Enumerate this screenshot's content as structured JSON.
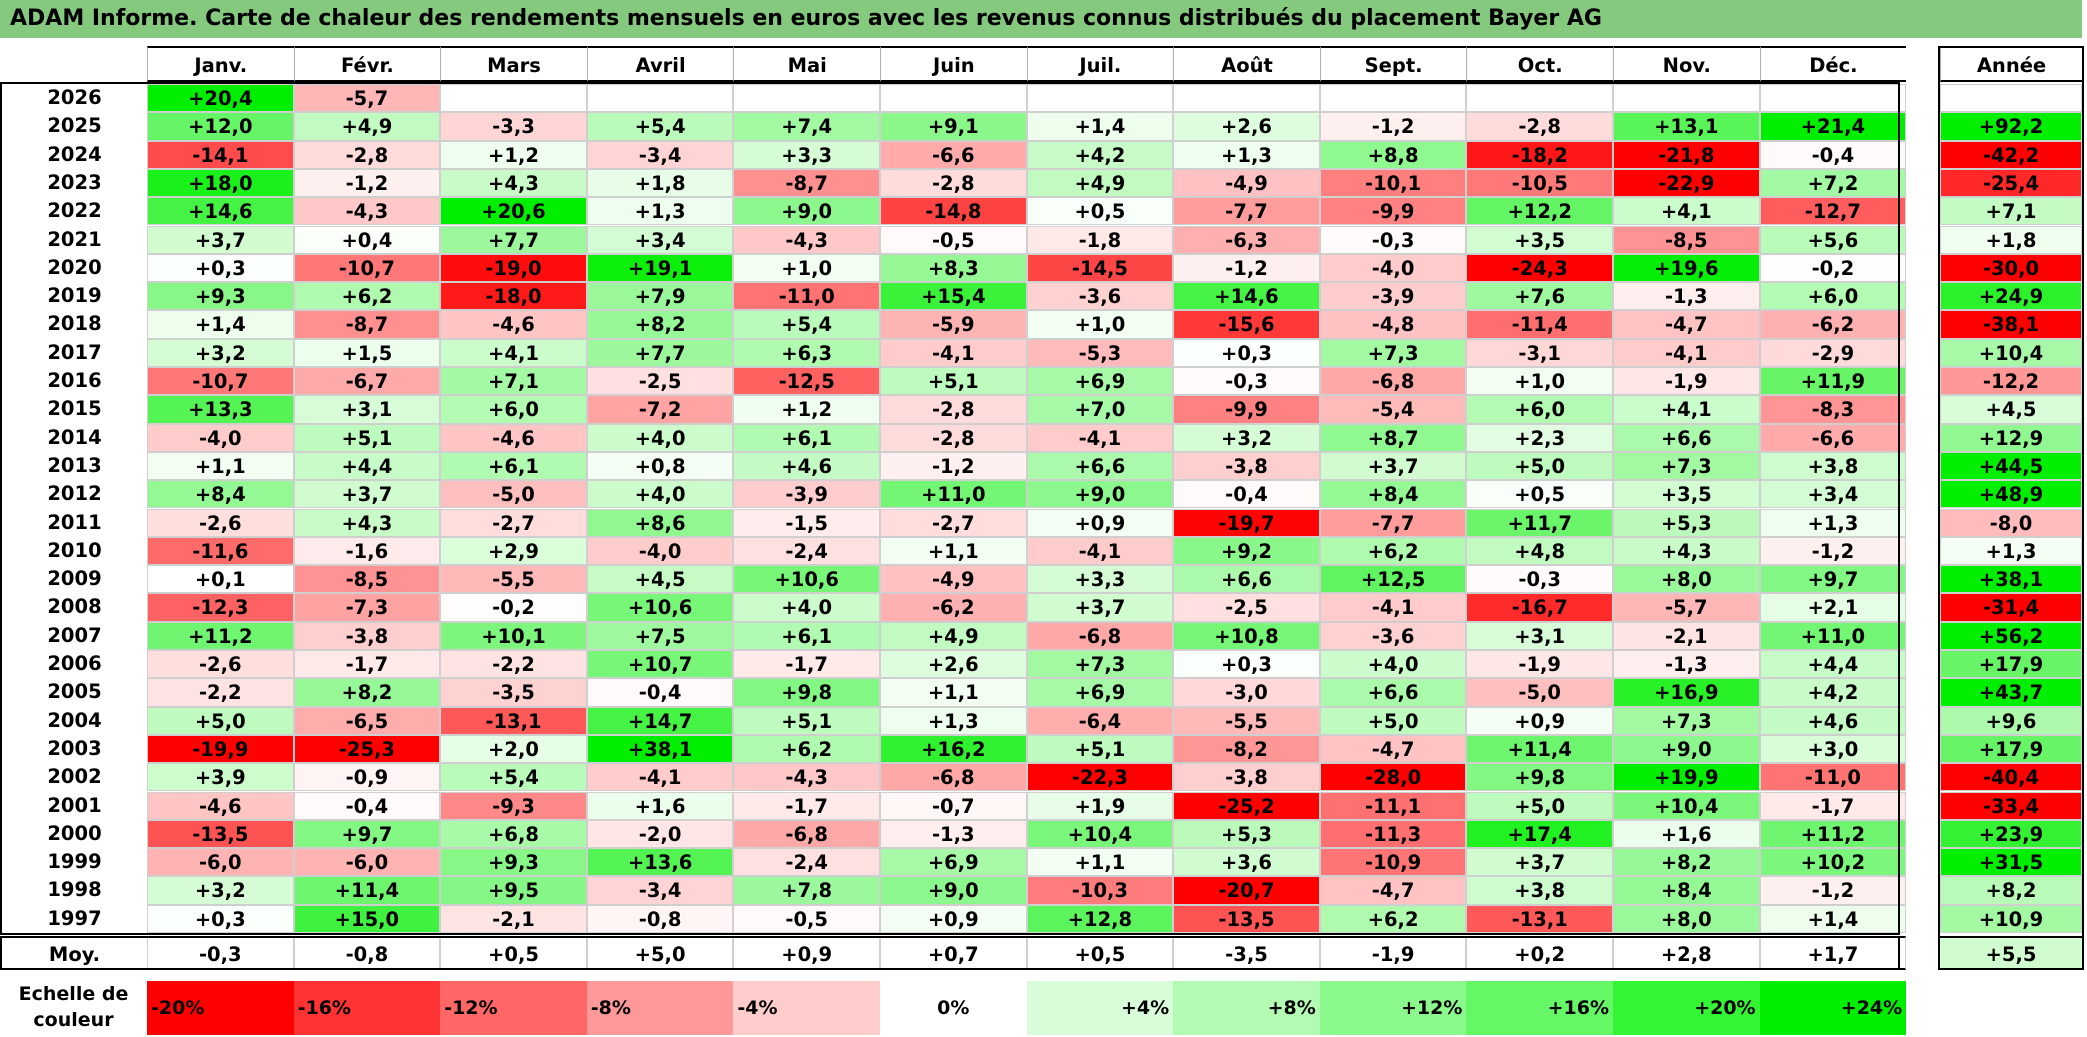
{
  "title": "ADAM Informe. Carte de chaleur des rendements mensuels en euros avec les revenus connus distribués du placement Bayer AG",
  "months": [
    "Janv.",
    "Févr.",
    "Mars",
    "Avril",
    "Mai",
    "Juin",
    "Juil.",
    "Août",
    "Sept.",
    "Oct.",
    "Nov.",
    "Déc."
  ],
  "year_header": "Année",
  "avg_label": "Moy.",
  "legend_label_line1": "Echelle de",
  "legend_label_line2": "couleur",
  "legend": [
    {
      "label": "-20%",
      "value": -20,
      "color": "#ff0000"
    },
    {
      "label": "-16%",
      "value": -16,
      "color": "#ff3333"
    },
    {
      "label": "-12%",
      "value": -12,
      "color": "#ff6666"
    },
    {
      "label": "-8%",
      "value": -8,
      "color": "#ff9999"
    },
    {
      "label": "-4%",
      "value": -4,
      "color": "#ffcccc"
    },
    {
      "label": "0%",
      "value": 0,
      "color": "#ffffff"
    },
    {
      "label": "+4%",
      "value": 4,
      "color": "#d9fdd9"
    },
    {
      "label": "+8%",
      "value": 8,
      "color": "#b3fbb3"
    },
    {
      "label": "+12%",
      "value": 12,
      "color": "#8cf98c"
    },
    {
      "label": "+16%",
      "value": 16,
      "color": "#66f766"
    },
    {
      "label": "+20%",
      "value": 20,
      "color": "#33f533"
    },
    {
      "label": "+24%",
      "value": 24,
      "color": "#00ee00"
    }
  ],
  "chart_data": {
    "type": "heatmap",
    "title": "ADAM Informe. Carte de chaleur des rendements mensuels en euros avec les revenus connus distribués du placement Bayer AG",
    "unit": "%",
    "columns": [
      "Janv.",
      "Févr.",
      "Mars",
      "Avril",
      "Mai",
      "Juin",
      "Juil.",
      "Août",
      "Sept.",
      "Oct.",
      "Nov.",
      "Déc.",
      "Année"
    ],
    "rows": [
      {
        "year": "2026",
        "values": [
          "+20,4",
          "-5,7",
          "",
          "",
          "",
          "",
          "",
          "",
          "",
          "",
          "",
          ""
        ],
        "annual": ""
      },
      {
        "year": "2025",
        "values": [
          "+12,0",
          "+4,9",
          "-3,3",
          "+5,4",
          "+7,4",
          "+9,1",
          "+1,4",
          "+2,6",
          "-1,2",
          "-2,8",
          "+13,1",
          "+21,4"
        ],
        "annual": "+92,2"
      },
      {
        "year": "2024",
        "values": [
          "-14,1",
          "-2,8",
          "+1,2",
          "-3,4",
          "+3,3",
          "-6,6",
          "+4,2",
          "+1,3",
          "+8,8",
          "-18,2",
          "-21,8",
          "-0,4"
        ],
        "annual": "-42,2"
      },
      {
        "year": "2023",
        "values": [
          "+18,0",
          "-1,2",
          "+4,3",
          "+1,8",
          "-8,7",
          "-2,8",
          "+4,9",
          "-4,9",
          "-10,1",
          "-10,5",
          "-22,9",
          "+7,2"
        ],
        "annual": "-25,4"
      },
      {
        "year": "2022",
        "values": [
          "+14,6",
          "-4,3",
          "+20,6",
          "+1,3",
          "+9,0",
          "-14,8",
          "+0,5",
          "-7,7",
          "-9,9",
          "+12,2",
          "+4,1",
          "-12,7"
        ],
        "annual": "+7,1"
      },
      {
        "year": "2021",
        "values": [
          "+3,7",
          "+0,4",
          "+7,7",
          "+3,4",
          "-4,3",
          "-0,5",
          "-1,8",
          "-6,3",
          "-0,3",
          "+3,5",
          "-8,5",
          "+5,6"
        ],
        "annual": "+1,8"
      },
      {
        "year": "2020",
        "values": [
          "+0,3",
          "-10,7",
          "-19,0",
          "+19,1",
          "+1,0",
          "+8,3",
          "-14,5",
          "-1,2",
          "-4,0",
          "-24,3",
          "+19,6",
          "-0,2"
        ],
        "annual": "-30,0"
      },
      {
        "year": "2019",
        "values": [
          "+9,3",
          "+6,2",
          "-18,0",
          "+7,9",
          "-11,0",
          "+15,4",
          "-3,6",
          "+14,6",
          "-3,9",
          "+7,6",
          "-1,3",
          "+6,0"
        ],
        "annual": "+24,9"
      },
      {
        "year": "2018",
        "values": [
          "+1,4",
          "-8,7",
          "-4,6",
          "+8,2",
          "+5,4",
          "-5,9",
          "+1,0",
          "-15,6",
          "-4,8",
          "-11,4",
          "-4,7",
          "-6,2"
        ],
        "annual": "-38,1"
      },
      {
        "year": "2017",
        "values": [
          "+3,2",
          "+1,5",
          "+4,1",
          "+7,7",
          "+6,3",
          "-4,1",
          "-5,3",
          "+0,3",
          "+7,3",
          "-3,1",
          "-4,1",
          "-2,9"
        ],
        "annual": "+10,4"
      },
      {
        "year": "2016",
        "values": [
          "-10,7",
          "-6,7",
          "+7,1",
          "-2,5",
          "-12,5",
          "+5,1",
          "+6,9",
          "-0,3",
          "-6,8",
          "+1,0",
          "-1,9",
          "+11,9"
        ],
        "annual": "-12,2"
      },
      {
        "year": "2015",
        "values": [
          "+13,3",
          "+3,1",
          "+6,0",
          "-7,2",
          "+1,2",
          "-2,8",
          "+7,0",
          "-9,9",
          "-5,4",
          "+6,0",
          "+4,1",
          "-8,3"
        ],
        "annual": "+4,5"
      },
      {
        "year": "2014",
        "values": [
          "-4,0",
          "+5,1",
          "-4,6",
          "+4,0",
          "+6,1",
          "-2,8",
          "-4,1",
          "+3,2",
          "+8,7",
          "+2,3",
          "+6,6",
          "-6,6"
        ],
        "annual": "+12,9"
      },
      {
        "year": "2013",
        "values": [
          "+1,1",
          "+4,4",
          "+6,1",
          "+0,8",
          "+4,6",
          "-1,2",
          "+6,6",
          "-3,8",
          "+3,7",
          "+5,0",
          "+7,3",
          "+3,8"
        ],
        "annual": "+44,5"
      },
      {
        "year": "2012",
        "values": [
          "+8,4",
          "+3,7",
          "-5,0",
          "+4,0",
          "-3,9",
          "+11,0",
          "+9,0",
          "-0,4",
          "+8,4",
          "+0,5",
          "+3,5",
          "+3,4"
        ],
        "annual": "+48,9"
      },
      {
        "year": "2011",
        "values": [
          "-2,6",
          "+4,3",
          "-2,7",
          "+8,6",
          "-1,5",
          "-2,7",
          "+0,9",
          "-19,7",
          "-7,7",
          "+11,7",
          "+5,3",
          "+1,3"
        ],
        "annual": "-8,0"
      },
      {
        "year": "2010",
        "values": [
          "-11,6",
          "-1,6",
          "+2,9",
          "-4,0",
          "-2,4",
          "+1,1",
          "-4,1",
          "+9,2",
          "+6,2",
          "+4,8",
          "+4,3",
          "-1,2"
        ],
        "annual": "+1,3"
      },
      {
        "year": "2009",
        "values": [
          "+0,1",
          "-8,5",
          "-5,5",
          "+4,5",
          "+10,6",
          "-4,9",
          "+3,3",
          "+6,6",
          "+12,5",
          "-0,3",
          "+8,0",
          "+9,7"
        ],
        "annual": "+38,1"
      },
      {
        "year": "2008",
        "values": [
          "-12,3",
          "-7,3",
          "-0,2",
          "+10,6",
          "+4,0",
          "-6,2",
          "+3,7",
          "-2,5",
          "-4,1",
          "-16,7",
          "-5,7",
          "+2,1"
        ],
        "annual": "-31,4"
      },
      {
        "year": "2007",
        "values": [
          "+11,2",
          "-3,8",
          "+10,1",
          "+7,5",
          "+6,1",
          "+4,9",
          "-6,8",
          "+10,8",
          "-3,6",
          "+3,1",
          "-2,1",
          "+11,0"
        ],
        "annual": "+56,2"
      },
      {
        "year": "2006",
        "values": [
          "-2,6",
          "-1,7",
          "-2,2",
          "+10,7",
          "-1,7",
          "+2,6",
          "+7,3",
          "+0,3",
          "+4,0",
          "-1,9",
          "-1,3",
          "+4,4"
        ],
        "annual": "+17,9"
      },
      {
        "year": "2005",
        "values": [
          "-2,2",
          "+8,2",
          "-3,5",
          "-0,4",
          "+9,8",
          "+1,1",
          "+6,9",
          "-3,0",
          "+6,6",
          "-5,0",
          "+16,9",
          "+4,2"
        ],
        "annual": "+43,7"
      },
      {
        "year": "2004",
        "values": [
          "+5,0",
          "-6,5",
          "-13,1",
          "+14,7",
          "+5,1",
          "+1,3",
          "-6,4",
          "-5,5",
          "+5,0",
          "+0,9",
          "+7,3",
          "+4,6"
        ],
        "annual": "+9,6"
      },
      {
        "year": "2003",
        "values": [
          "-19,9",
          "-25,3",
          "+2,0",
          "+38,1",
          "+6,2",
          "+16,2",
          "+5,1",
          "-8,2",
          "-4,7",
          "+11,4",
          "+9,0",
          "+3,0"
        ],
        "annual": "+17,9"
      },
      {
        "year": "2002",
        "values": [
          "+3,9",
          "-0,9",
          "+5,4",
          "-4,1",
          "-4,3",
          "-6,8",
          "-22,3",
          "-3,8",
          "-28,0",
          "+9,8",
          "+19,9",
          "-11,0"
        ],
        "annual": "-40,4"
      },
      {
        "year": "2001",
        "values": [
          "-4,6",
          "-0,4",
          "-9,3",
          "+1,6",
          "-1,7",
          "-0,7",
          "+1,9",
          "-25,2",
          "-11,1",
          "+5,0",
          "+10,4",
          "-1,7"
        ],
        "annual": "-33,4"
      },
      {
        "year": "2000",
        "values": [
          "-13,5",
          "+9,7",
          "+6,8",
          "-2,0",
          "-6,8",
          "-1,3",
          "+10,4",
          "+5,3",
          "-11,3",
          "+17,4",
          "+1,6",
          "+11,2"
        ],
        "annual": "+23,9"
      },
      {
        "year": "1999",
        "values": [
          "-6,0",
          "-6,0",
          "+9,3",
          "+13,6",
          "-2,4",
          "+6,9",
          "+1,1",
          "+3,6",
          "-10,9",
          "+3,7",
          "+8,2",
          "+10,2"
        ],
        "annual": "+31,5"
      },
      {
        "year": "1998",
        "values": [
          "+3,2",
          "+11,4",
          "+9,5",
          "-3,4",
          "+7,8",
          "+9,0",
          "-10,3",
          "-20,7",
          "-4,7",
          "+3,8",
          "+8,4",
          "-1,2"
        ],
        "annual": "+8,2"
      },
      {
        "year": "1997",
        "values": [
          "+0,3",
          "+15,0",
          "-2,1",
          "-0,8",
          "-0,5",
          "+0,9",
          "+12,8",
          "-13,5",
          "+6,2",
          "-13,1",
          "+8,0",
          "+1,4"
        ],
        "annual": "+10,9"
      }
    ],
    "average": {
      "values": [
        "-0,3",
        "-0,8",
        "+0,5",
        "+5,0",
        "+0,9",
        "+0,7",
        "+0,5",
        "-3,5",
        "-1,9",
        "+0,2",
        "+2,8",
        "+1,7"
      ],
      "annual": "+5,5"
    }
  }
}
